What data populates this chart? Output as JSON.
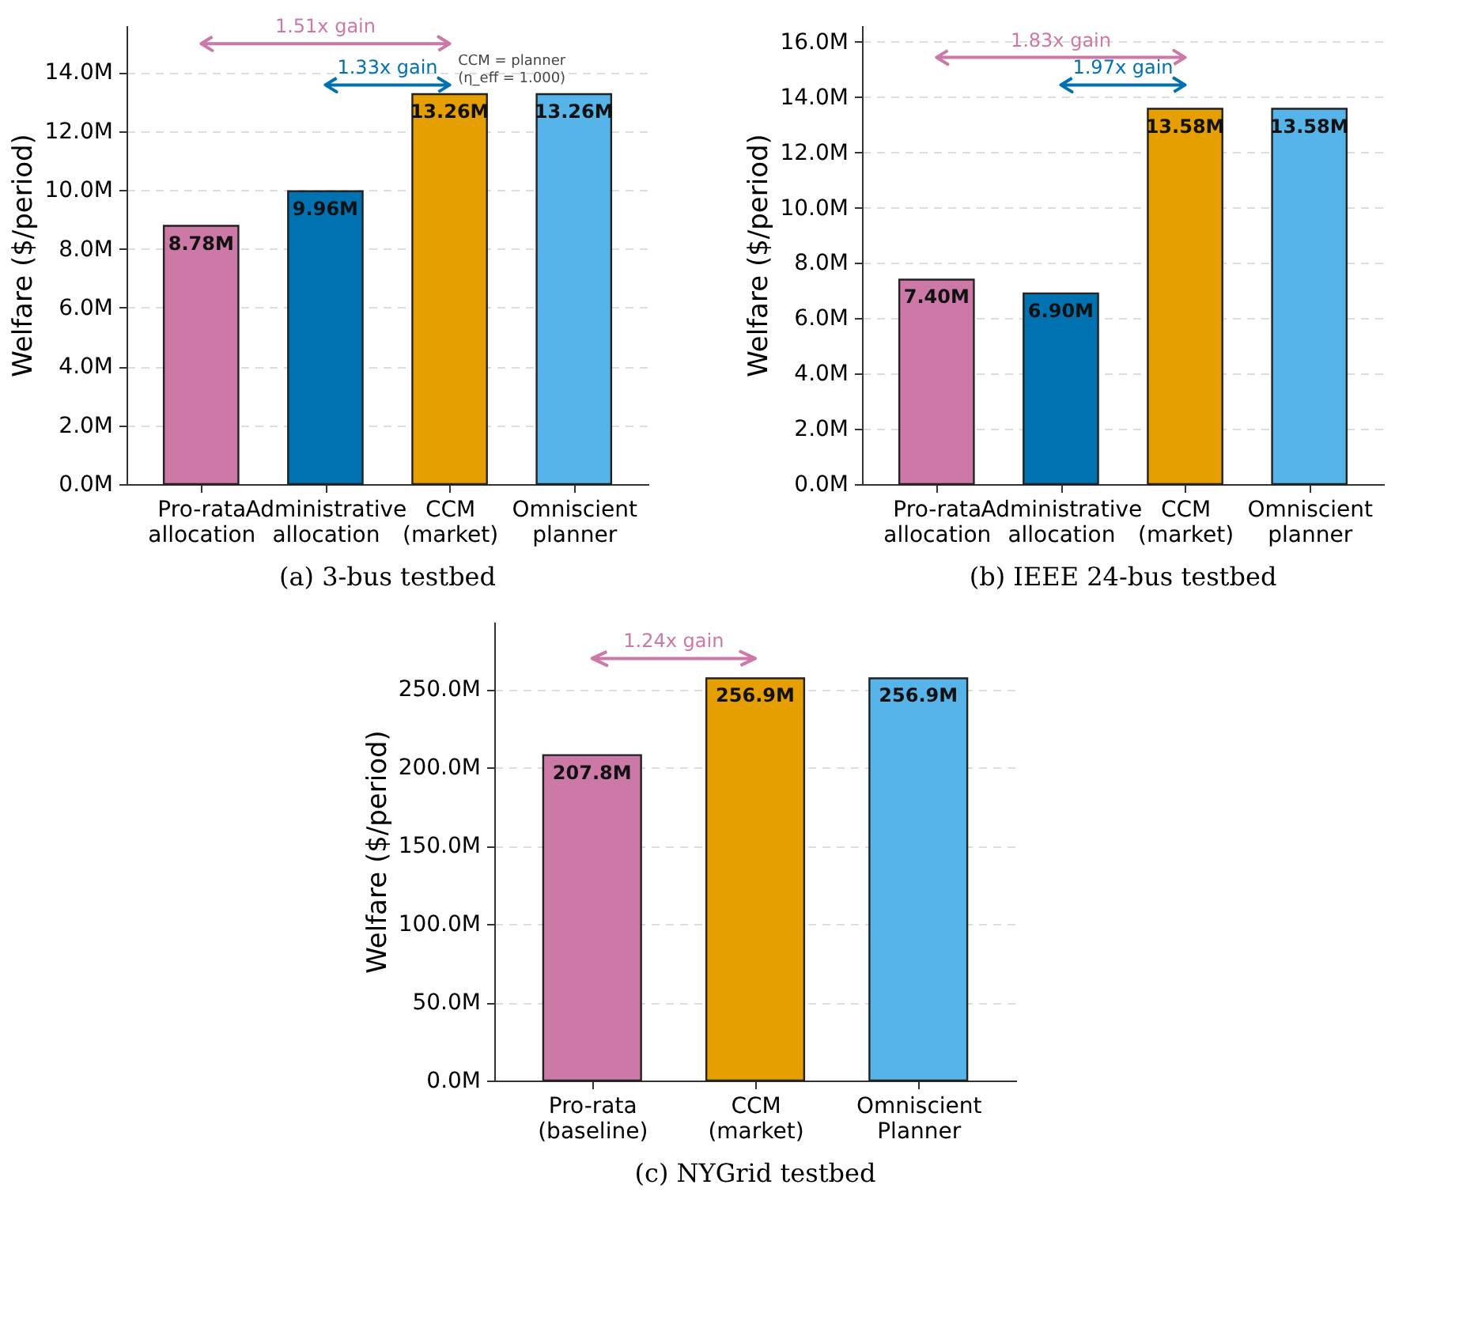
{
  "chart_data": [
    {
      "type": "bar",
      "title": "(a) 3-bus testbed",
      "ylabel": "Welfare ($/period)",
      "categories": [
        "Pro-rata allocation",
        "Administrative allocation",
        "CCM (market)",
        "Omniscient planner"
      ],
      "values": [
        8.78,
        9.96,
        13.26,
        13.26
      ],
      "colors": [
        "#cc79a7",
        "#0072b2",
        "#e69f00",
        "#56b4e9"
      ],
      "value_labels": [
        "8.78M",
        "9.96M",
        "13.26M",
        "13.26M"
      ],
      "ylim": [
        0,
        15.6
      ],
      "yticks": [
        {
          "value": 0,
          "label": "0.0M"
        },
        {
          "value": 2,
          "label": "2.0M"
        },
        {
          "value": 4,
          "label": "4.0M"
        },
        {
          "value": 6,
          "label": "6.0M"
        },
        {
          "value": 8,
          "label": "8.0M"
        },
        {
          "value": 10,
          "label": "10.0M"
        },
        {
          "value": 12,
          "label": "12.0M"
        },
        {
          "value": 14,
          "label": "14.0M"
        }
      ],
      "grid": "y",
      "annotations": [
        "1.51x gain",
        "1.33x gain",
        "CCM = planner (η_eff = 1.000)"
      ]
    },
    {
      "type": "bar",
      "title": "(b) IEEE 24-bus testbed",
      "ylabel": "Welfare ($/period)",
      "categories": [
        "Pro-rata allocation",
        "Administrative allocation",
        "CCM (market)",
        "Omniscient planner"
      ],
      "values": [
        7.4,
        6.9,
        13.58,
        13.58
      ],
      "colors": [
        "#cc79a7",
        "#0072b2",
        "#e69f00",
        "#56b4e9"
      ],
      "value_labels": [
        "7.40M",
        "6.90M",
        "13.58M",
        "13.58M"
      ],
      "ylim": [
        0,
        16.6
      ],
      "yticks": [
        {
          "value": 0,
          "label": "0.0M"
        },
        {
          "value": 2,
          "label": "2.0M"
        },
        {
          "value": 4,
          "label": "4.0M"
        },
        {
          "value": 6,
          "label": "6.0M"
        },
        {
          "value": 8,
          "label": "8.0M"
        },
        {
          "value": 10,
          "label": "10.0M"
        },
        {
          "value": 12,
          "label": "12.0M"
        },
        {
          "value": 14,
          "label": "14.0M"
        },
        {
          "value": 16,
          "label": "16.0M"
        }
      ],
      "grid": "y",
      "annotations": [
        "1.83x gain",
        "1.97x gain"
      ]
    },
    {
      "type": "bar",
      "title": "(c) NYGrid testbed",
      "ylabel": "Welfare ($/period)",
      "categories": [
        "Pro-rata (baseline)",
        "CCM (market)",
        "Omniscient Planner"
      ],
      "values": [
        207.8,
        256.9,
        256.9
      ],
      "colors": [
        "#cc79a7",
        "#e69f00",
        "#56b4e9"
      ],
      "value_labels": [
        "207.8M",
        "256.9M",
        "256.9M"
      ],
      "ylim": [
        0,
        293
      ],
      "yticks": [
        {
          "value": 0,
          "label": "0.0M"
        },
        {
          "value": 50,
          "label": "50.0M"
        },
        {
          "value": 100,
          "label": "100.0M"
        },
        {
          "value": 150,
          "label": "150.0M"
        },
        {
          "value": 200,
          "label": "200.0M"
        },
        {
          "value": 250,
          "label": "250.0M"
        }
      ],
      "grid": "y",
      "annotations": [
        "1.24x gain"
      ]
    }
  ]
}
